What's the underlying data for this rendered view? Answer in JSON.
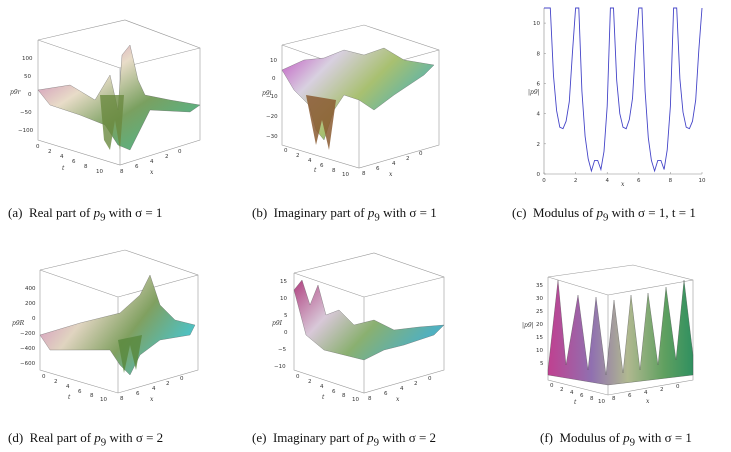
{
  "captions": [
    {
      "id": "a",
      "label": "(a)",
      "text": "Real part of",
      "sym": "p",
      "sub": "9",
      "tail": "with σ = 1"
    },
    {
      "id": "b",
      "label": "(b)",
      "text": "Imaginary part of",
      "sym": "p",
      "sub": "9",
      "tail": "with σ = 1"
    },
    {
      "id": "c",
      "label": "(c)",
      "text": "Modulus of",
      "sym": "p",
      "sub": "9",
      "tail": "with σ = 1, t = 1"
    },
    {
      "id": "d",
      "label": "(d)",
      "text": "Real part of",
      "sym": "p",
      "sub": "9",
      "tail": "with σ = 2"
    },
    {
      "id": "e",
      "label": "(e)",
      "text": "Imaginary part of",
      "sym": "p",
      "sub": "9",
      "tail": "with σ = 2"
    },
    {
      "id": "f",
      "label": "(f)",
      "text": "Modulus of",
      "sym": "p",
      "sub": "9",
      "tail": "with σ = 1"
    }
  ],
  "axis_labels": {
    "a_z": "p9r",
    "b_z": "p9i",
    "c_y": "|p9|",
    "d_z": "p9R",
    "e_z": "p9I",
    "f_z": "|p9|",
    "t": "t",
    "x": "x"
  },
  "ticks": {
    "a_z": [
      "100",
      "50",
      "0",
      "−50",
      "−100"
    ],
    "b_z": [
      "10",
      "0",
      "−10",
      "−20",
      "−30"
    ],
    "d_z": [
      "400",
      "200",
      "0",
      "−200",
      "−400",
      "−600"
    ],
    "e_z": [
      "15",
      "10",
      "5",
      "0",
      "−5",
      "−10"
    ],
    "f_z": [
      "35",
      "30",
      "25",
      "20",
      "15",
      "10",
      "5"
    ],
    "t": [
      "0",
      "2",
      "4",
      "6",
      "8",
      "10"
    ],
    "x": [
      "10",
      "8",
      "6",
      "4",
      "2",
      "0"
    ]
  },
  "chart_data": {
    "type": "line",
    "title": "",
    "xlabel": "x",
    "ylabel": "|p9|",
    "xlim": [
      0,
      10
    ],
    "ylim": [
      0,
      11
    ],
    "xticks": [
      "0",
      "2",
      "4",
      "6",
      "8",
      "10"
    ],
    "yticks": [
      "0",
      "2",
      "4",
      "6",
      "8",
      "10"
    ],
    "x": [
      0.0,
      0.2,
      0.4,
      0.6,
      0.8,
      1.0,
      1.2,
      1.4,
      1.6,
      1.8,
      2.0,
      2.2,
      2.4,
      2.6,
      2.8,
      3.0,
      3.2,
      3.4,
      3.6,
      3.8,
      4.0,
      4.2,
      4.4,
      4.6,
      4.8,
      5.0,
      5.2,
      5.4,
      5.6,
      5.8,
      6.0,
      6.2,
      6.4,
      6.6,
      6.8,
      7.0,
      7.2,
      7.4,
      7.6,
      7.8,
      8.0,
      8.2,
      8.4,
      8.6,
      8.8,
      9.0,
      9.2,
      9.4,
      9.6,
      9.8,
      10.0
    ],
    "series": [
      {
        "values": [
          11,
          11,
          11,
          6.5,
          4.2,
          3.1,
          3.0,
          3.5,
          4.8,
          8.0,
          11,
          11,
          5.5,
          2.5,
          1.0,
          0.2,
          0.9,
          0.9,
          0.3,
          1.5,
          4.5,
          11,
          11,
          6.2,
          4.0,
          3.1,
          3.0,
          3.6,
          5.0,
          8.5,
          11,
          11,
          5.5,
          2.4,
          0.9,
          0.2,
          0.9,
          0.9,
          0.3,
          1.6,
          4.5,
          11,
          11,
          6.3,
          4.1,
          3.1,
          3.0,
          3.5,
          4.9,
          8.2,
          11
        ],
        "color": "#4545c8"
      }
    ]
  },
  "colors": {
    "line": "#4545c8",
    "frame": "#888888"
  }
}
